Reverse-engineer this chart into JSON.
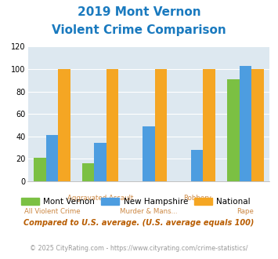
{
  "title_line1": "2019 Mont Vernon",
  "title_line2": "Violent Crime Comparison",
  "categories": [
    "All Violent Crime",
    "Aggravated Assault",
    "Murder & Mans...",
    "Robbery",
    "Rape"
  ],
  "mont_vernon": [
    21,
    16,
    0,
    0,
    91
  ],
  "new_hampshire": [
    41,
    34,
    49,
    28,
    103
  ],
  "national": [
    100,
    100,
    100,
    100,
    100
  ],
  "colors": {
    "mont_vernon": "#7bc043",
    "new_hampshire": "#4d9de0",
    "national": "#f5a623"
  },
  "ylim": [
    0,
    120
  ],
  "yticks": [
    0,
    20,
    40,
    60,
    80,
    100,
    120
  ],
  "legend_labels": [
    "Mont Vernon",
    "New Hampshire",
    "National"
  ],
  "footnote1": "Compared to U.S. average. (U.S. average equals 100)",
  "footnote2": "© 2025 CityRating.com - https://www.cityrating.com/crime-statistics/",
  "title_color": "#1a7abf",
  "xtick_color": "#cc8844",
  "footnote1_color": "#b85c00",
  "footnote2_color": "#999999",
  "bg_color": "#dde8f0",
  "bar_width": 0.25,
  "figsize": [
    3.55,
    3.3
  ],
  "dpi": 100
}
